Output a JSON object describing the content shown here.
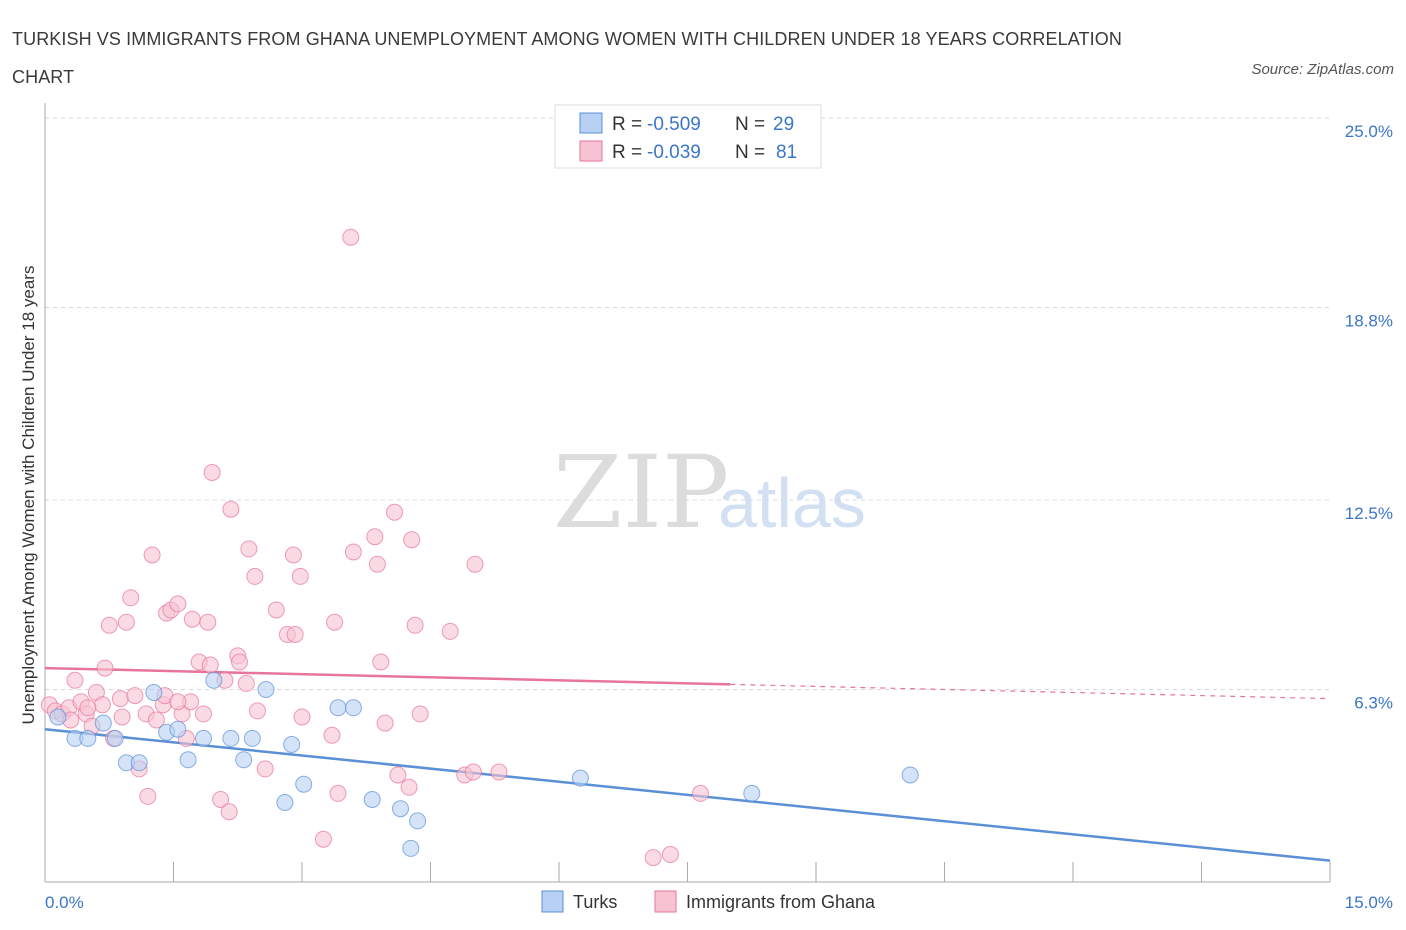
{
  "header": {
    "title": "TURKISH VS IMMIGRANTS FROM GHANA UNEMPLOYMENT AMONG WOMEN WITH CHILDREN UNDER 18 YEARS CORRELATION CHART",
    "source": "Source: ZipAtlas.com"
  },
  "stats": [
    {
      "r_label": "R = ",
      "r_value": "-0.509",
      "n_label": "N = ",
      "n_value": "29",
      "color": "#a9c8f0"
    },
    {
      "r_label": "R = ",
      "r_value": "-0.039",
      "n_label": "N = ",
      "n_value": "81",
      "color": "#f6bccd"
    }
  ],
  "watermark": {
    "zip": "ZIP",
    "atlas": "atlas"
  },
  "chart_data": {
    "type": "scatter",
    "title": "TURKISH VS IMMIGRANTS FROM GHANA UNEMPLOYMENT AMONG WOMEN WITH CHILDREN UNDER 18 YEARS CORRELATION CHART",
    "xlabel": "",
    "ylabel": "Unemployment Among Women with Children Under 18 years",
    "xlim": [
      0,
      15
    ],
    "ylim": [
      0,
      25
    ],
    "x_tick_labels": [
      "0.0%",
      "15.0%"
    ],
    "y_ticks": [
      6.3,
      12.5,
      18.8,
      25.0
    ],
    "y_tick_labels": [
      "6.3%",
      "12.5%",
      "18.8%",
      "25.0%"
    ],
    "grid": true,
    "legend_position": "bottom-center",
    "series": [
      {
        "name": "Turks",
        "color": "#5b8fd6",
        "fill": "#b7d0f3",
        "trend": {
          "x0": 0,
          "y0": 5.0,
          "x1": 15,
          "y1": 0.7,
          "solid_to": 15
        },
        "points": [
          [
            0.15,
            5.4
          ],
          [
            0.35,
            4.7
          ],
          [
            0.5,
            4.7
          ],
          [
            0.68,
            5.2
          ],
          [
            0.82,
            4.7
          ],
          [
            0.95,
            3.9
          ],
          [
            1.1,
            3.9
          ],
          [
            1.27,
            6.2
          ],
          [
            1.42,
            4.9
          ],
          [
            1.55,
            5.0
          ],
          [
            1.67,
            4.0
          ],
          [
            1.85,
            4.7
          ],
          [
            1.97,
            6.6
          ],
          [
            2.17,
            4.7
          ],
          [
            2.32,
            4.0
          ],
          [
            2.42,
            4.7
          ],
          [
            2.58,
            6.3
          ],
          [
            2.8,
            2.6
          ],
          [
            2.88,
            4.5
          ],
          [
            3.02,
            3.2
          ],
          [
            3.42,
            5.7
          ],
          [
            3.82,
            2.7
          ],
          [
            4.15,
            2.4
          ],
          [
            4.27,
            1.1
          ],
          [
            4.35,
            2.0
          ],
          [
            6.25,
            3.4
          ],
          [
            8.25,
            2.9
          ],
          [
            10.1,
            3.5
          ],
          [
            3.6,
            5.7
          ]
        ]
      },
      {
        "name": "Immigrants from Ghana",
        "color": "#e8749a",
        "fill": "#f7c3d2",
        "trend": {
          "x0": 0,
          "y0": 7.0,
          "x1": 15,
          "y1": 6.0,
          "solid_to": 8.0
        },
        "points": [
          [
            0.05,
            5.8
          ],
          [
            0.12,
            5.6
          ],
          [
            0.2,
            5.5
          ],
          [
            0.28,
            5.7
          ],
          [
            0.35,
            6.6
          ],
          [
            0.42,
            5.9
          ],
          [
            0.48,
            5.5
          ],
          [
            0.55,
            5.1
          ],
          [
            0.6,
            6.2
          ],
          [
            0.67,
            5.8
          ],
          [
            0.7,
            7.0
          ],
          [
            0.75,
            8.4
          ],
          [
            0.8,
            4.7
          ],
          [
            0.88,
            6.0
          ],
          [
            0.9,
            5.4
          ],
          [
            0.95,
            8.5
          ],
          [
            1.0,
            9.3
          ],
          [
            1.05,
            6.1
          ],
          [
            1.1,
            3.7
          ],
          [
            1.18,
            5.5
          ],
          [
            1.2,
            2.8
          ],
          [
            1.25,
            10.7
          ],
          [
            1.3,
            5.3
          ],
          [
            1.38,
            5.8
          ],
          [
            1.4,
            6.1
          ],
          [
            1.42,
            8.8
          ],
          [
            1.47,
            8.9
          ],
          [
            1.55,
            9.1
          ],
          [
            1.6,
            5.5
          ],
          [
            1.65,
            4.7
          ],
          [
            1.7,
            5.9
          ],
          [
            1.72,
            8.6
          ],
          [
            1.8,
            7.2
          ],
          [
            1.85,
            5.5
          ],
          [
            1.9,
            8.5
          ],
          [
            1.93,
            7.1
          ],
          [
            1.95,
            13.4
          ],
          [
            2.05,
            2.7
          ],
          [
            2.1,
            6.6
          ],
          [
            2.15,
            2.3
          ],
          [
            2.17,
            12.2
          ],
          [
            2.25,
            7.4
          ],
          [
            2.27,
            7.2
          ],
          [
            2.38,
            10.9
          ],
          [
            2.45,
            10.0
          ],
          [
            2.48,
            5.6
          ],
          [
            2.57,
            3.7
          ],
          [
            2.7,
            8.9
          ],
          [
            2.83,
            8.1
          ],
          [
            2.9,
            10.7
          ],
          [
            2.92,
            8.1
          ],
          [
            2.98,
            10.0
          ],
          [
            3.0,
            5.4
          ],
          [
            3.35,
            4.8
          ],
          [
            3.38,
            8.5
          ],
          [
            3.42,
            2.9
          ],
          [
            3.57,
            21.1
          ],
          [
            3.6,
            10.8
          ],
          [
            3.85,
            11.3
          ],
          [
            3.88,
            10.4
          ],
          [
            3.92,
            7.2
          ],
          [
            3.97,
            5.2
          ],
          [
            4.08,
            12.1
          ],
          [
            4.12,
            3.5
          ],
          [
            4.25,
            3.1
          ],
          [
            4.28,
            11.2
          ],
          [
            4.32,
            8.4
          ],
          [
            4.38,
            5.5
          ],
          [
            4.73,
            8.2
          ],
          [
            4.9,
            3.5
          ],
          [
            5.0,
            3.6
          ],
          [
            5.02,
            10.4
          ],
          [
            5.3,
            3.6
          ],
          [
            7.1,
            0.8
          ],
          [
            7.3,
            0.9
          ],
          [
            7.65,
            2.9
          ],
          [
            3.25,
            1.4
          ],
          [
            0.5,
            5.7
          ],
          [
            1.55,
            5.9
          ],
          [
            2.35,
            6.5
          ],
          [
            0.3,
            5.3
          ]
        ]
      }
    ]
  },
  "legend": {
    "items": [
      {
        "label": "Turks"
      },
      {
        "label": "Immigrants from Ghana"
      }
    ]
  }
}
